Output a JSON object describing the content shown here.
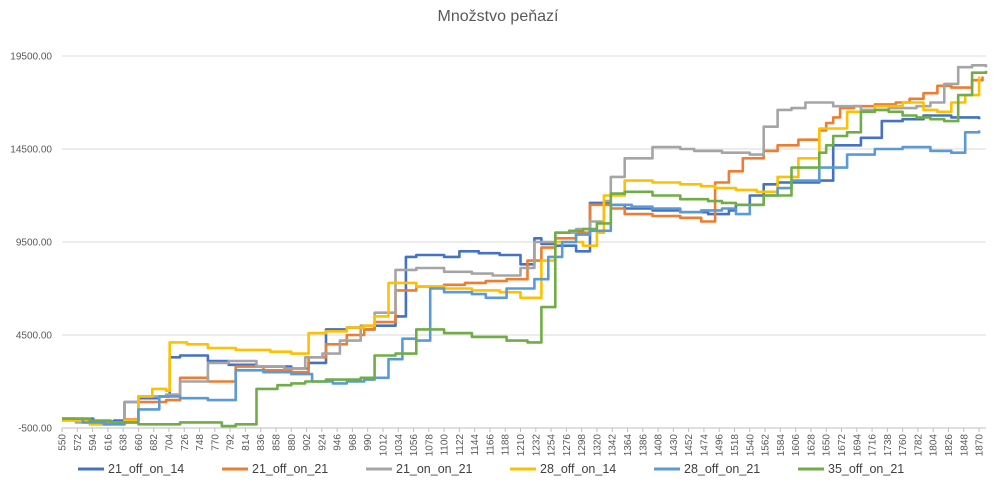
{
  "chart_data": {
    "type": "line",
    "title": "Množstvo peňazí",
    "xlabel": "",
    "ylabel": "",
    "ylim": [
      -500,
      19500
    ],
    "yticks": [
      -500,
      4500,
      9500,
      14500,
      19500
    ],
    "ytick_labels": [
      "-500.00",
      "4500.00",
      "9500.00",
      "14500.00",
      "19500.00"
    ],
    "xlim": [
      550,
      1880
    ],
    "x_tick_labels": [
      "550",
      "572",
      "594",
      "616",
      "638",
      "660",
      "682",
      "704",
      "726",
      "748",
      "770",
      "792",
      "814",
      "836",
      "858",
      "880",
      "902",
      "924",
      "946",
      "968",
      "990",
      "1012",
      "1034",
      "1056",
      "1078",
      "1100",
      "1122",
      "1144",
      "1166",
      "1188",
      "1210",
      "1232",
      "1254",
      "1276",
      "1298",
      "1320",
      "1342",
      "1364",
      "1386",
      "1408",
      "1430",
      "1452",
      "1474",
      "1496",
      "1518",
      "1540",
      "1562",
      "1584",
      "1606",
      "1628",
      "1650",
      "1672",
      "1694",
      "1716",
      "1738",
      "1760",
      "1782",
      "1804",
      "1826",
      "1848",
      "1870"
    ],
    "grid": "horizontal",
    "legend_position": "bottom",
    "series": [
      {
        "name": "21_off_on_14",
        "color": "#4472C4",
        "x": [
          550,
          595,
          625,
          640,
          660,
          690,
          705,
          720,
          760,
          790,
          830,
          880,
          905,
          930,
          960,
          985,
          1000,
          1030,
          1045,
          1060,
          1100,
          1122,
          1150,
          1180,
          1210,
          1230,
          1240,
          1260,
          1290,
          1310,
          1340,
          1360,
          1400,
          1440,
          1480,
          1510,
          1520,
          1540,
          1560,
          1580,
          1640,
          1660,
          1700,
          1730,
          1760,
          1790,
          1830,
          1870
        ],
        "y": [
          0,
          -150,
          -100,
          900,
          1100,
          1200,
          3300,
          3400,
          3100,
          2900,
          2800,
          2700,
          3000,
          4800,
          4900,
          4800,
          5000,
          5500,
          8700,
          8800,
          8700,
          9000,
          8900,
          8800,
          8300,
          9700,
          9400,
          9300,
          9000,
          11600,
          11500,
          11300,
          11200,
          11100,
          11000,
          11200,
          11500,
          12000,
          12600,
          12700,
          12800,
          14700,
          15100,
          16000,
          16100,
          16300,
          16200,
          16100
        ]
      },
      {
        "name": "21_off_on_21",
        "color": "#ED7D31",
        "x": [
          550,
          570,
          590,
          615,
          640,
          660,
          700,
          720,
          760,
          800,
          840,
          880,
          905,
          930,
          960,
          985,
          1000,
          1030,
          1060,
          1100,
          1130,
          1160,
          1190,
          1220,
          1240,
          1260,
          1290,
          1310,
          1340,
          1360,
          1400,
          1440,
          1470,
          1490,
          1510,
          1530,
          1560,
          1580,
          1610,
          1640,
          1650,
          1660,
          1670,
          1690,
          1720,
          1750,
          1770,
          1790,
          1810,
          1830,
          1860,
          1875
        ],
        "y": [
          0,
          -100,
          -250,
          -300,
          -50,
          900,
          1000,
          2200,
          2000,
          2800,
          2600,
          2500,
          3300,
          4000,
          4500,
          4800,
          5200,
          6900,
          7100,
          7200,
          7300,
          7400,
          7500,
          8500,
          9200,
          9700,
          10000,
          11500,
          11300,
          11000,
          10900,
          10800,
          10600,
          12700,
          13300,
          14000,
          14400,
          14700,
          15000,
          15500,
          15900,
          16200,
          16700,
          16800,
          16900,
          17000,
          17200,
          17500,
          17900,
          17800,
          18200,
          18400
        ]
      },
      {
        "name": "21_on_on_21",
        "color": "#A5A5A5",
        "x": [
          550,
          570,
          590,
          615,
          640,
          660,
          700,
          720,
          760,
          790,
          830,
          870,
          900,
          925,
          950,
          980,
          1000,
          1030,
          1060,
          1100,
          1140,
          1170,
          1210,
          1230,
          1260,
          1290,
          1310,
          1330,
          1340,
          1360,
          1400,
          1440,
          1460,
          1500,
          1540,
          1560,
          1580,
          1600,
          1620,
          1660,
          1700,
          1740,
          1780,
          1800,
          1820,
          1840,
          1860,
          1880
        ],
        "y": [
          0,
          -200,
          -300,
          -250,
          900,
          1200,
          1300,
          2000,
          3000,
          3100,
          2800,
          2700,
          3300,
          3500,
          4200,
          5000,
          5700,
          8000,
          8100,
          7900,
          7800,
          7700,
          8100,
          9500,
          10000,
          10200,
          10600,
          11700,
          13000,
          14000,
          14600,
          14500,
          14400,
          14300,
          14200,
          15700,
          16600,
          16700,
          17000,
          16800,
          16600,
          16700,
          16800,
          17000,
          18000,
          18900,
          19000,
          18900
        ]
      },
      {
        "name": "28_off_on_14",
        "color": "#FFC000",
        "x": [
          550,
          590,
          620,
          640,
          660,
          680,
          700,
          705,
          730,
          760,
          800,
          850,
          880,
          905,
          930,
          960,
          985,
          1000,
          1020,
          1060,
          1100,
          1140,
          1180,
          1210,
          1240,
          1260,
          1300,
          1320,
          1330,
          1360,
          1400,
          1440,
          1470,
          1490,
          1520,
          1550,
          1580,
          1610,
          1640,
          1680,
          1720,
          1760,
          1790,
          1810,
          1830,
          1850,
          1870
        ],
        "y": [
          -100,
          -300,
          -200,
          -100,
          1200,
          1600,
          1500,
          4100,
          4000,
          3800,
          3700,
          3600,
          3500,
          4600,
          4700,
          4900,
          5000,
          5500,
          7300,
          7100,
          7000,
          6900,
          6800,
          6500,
          8500,
          9500,
          9300,
          10000,
          12000,
          12800,
          12700,
          12600,
          12500,
          12400,
          12300,
          12200,
          13000,
          14000,
          15600,
          16500,
          16800,
          17000,
          16600,
          16500,
          17000,
          17400,
          18400
        ]
      },
      {
        "name": "28_off_on_21",
        "color": "#5B9BD5",
        "x": [
          550,
          580,
          610,
          640,
          660,
          690,
          720,
          760,
          800,
          840,
          880,
          910,
          940,
          960,
          985,
          1000,
          1020,
          1040,
          1060,
          1080,
          1100,
          1140,
          1160,
          1190,
          1230,
          1250,
          1270,
          1290,
          1310,
          1340,
          1370,
          1400,
          1440,
          1470,
          1500,
          1520,
          1540,
          1560,
          1580,
          1600,
          1640,
          1680,
          1720,
          1760,
          1800,
          1830,
          1850,
          1870
        ],
        "y": [
          0,
          -200,
          -300,
          -200,
          500,
          1200,
          1100,
          1000,
          2600,
          2500,
          2400,
          2000,
          1900,
          2000,
          2100,
          2200,
          3200,
          4300,
          4200,
          7000,
          6800,
          6700,
          6500,
          7000,
          7500,
          8700,
          9500,
          9900,
          10100,
          11500,
          11400,
          11300,
          11100,
          11200,
          11300,
          11000,
          11500,
          12000,
          12400,
          12800,
          13500,
          14200,
          14500,
          14600,
          14400,
          14300,
          15400,
          15500
        ]
      },
      {
        "name": "35_off_on_21",
        "color": "#70AD47",
        "x": [
          550,
          590,
          620,
          660,
          720,
          780,
          800,
          830,
          860,
          880,
          900,
          930,
          960,
          980,
          1000,
          1030,
          1060,
          1100,
          1140,
          1190,
          1220,
          1240,
          1260,
          1280,
          1300,
          1320,
          1340,
          1360,
          1400,
          1440,
          1480,
          1500,
          1520,
          1560,
          1600,
          1640,
          1650,
          1660,
          1680,
          1700,
          1720,
          1740,
          1760,
          1780,
          1800,
          1820,
          1840,
          1860,
          1880
        ],
        "y": [
          0,
          -100,
          -200,
          -300,
          -200,
          -400,
          -300,
          1600,
          1800,
          1900,
          2000,
          2100,
          2100,
          2200,
          3400,
          3500,
          4800,
          4600,
          4400,
          4200,
          4100,
          6000,
          10000,
          10100,
          10200,
          10500,
          12100,
          12200,
          12000,
          11800,
          11700,
          11600,
          11500,
          12000,
          13500,
          14300,
          14700,
          15200,
          15400,
          16500,
          16600,
          16500,
          16300,
          16200,
          16100,
          16000,
          17400,
          18600,
          18700
        ]
      }
    ]
  }
}
